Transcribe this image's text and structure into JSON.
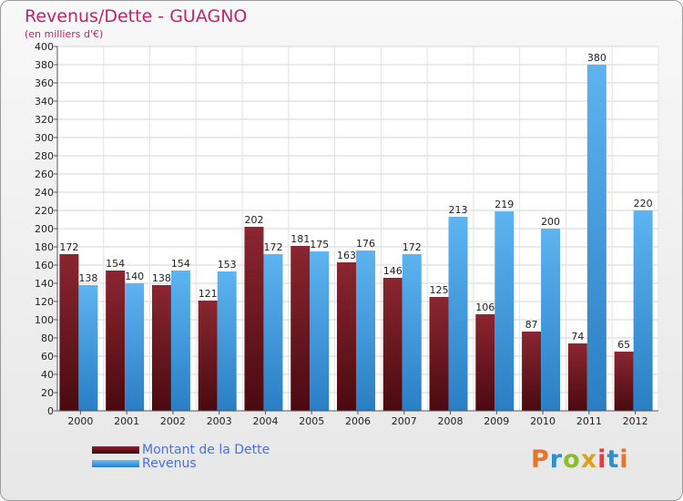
{
  "header": {
    "title": "Revenus/Dette - GUAGNO",
    "subtitle": "(en milliers d'€)"
  },
  "chart_data": {
    "type": "bar",
    "title": "Revenus/Dette - GUAGNO",
    "ylabel": "(en milliers d'€)",
    "categories": [
      "2000",
      "2001",
      "2002",
      "2003",
      "2004",
      "2005",
      "2006",
      "2007",
      "2008",
      "2009",
      "2010",
      "2011",
      "2012"
    ],
    "series": [
      {
        "name": "Montant de la Dette",
        "color": "#7a1a22",
        "values": [
          172,
          154,
          138,
          121,
          202,
          181,
          163,
          146,
          125,
          106,
          87,
          74,
          65
        ]
      },
      {
        "name": "Revenus",
        "color": "#4aa3e6",
        "values": [
          138,
          140,
          154,
          153,
          172,
          175,
          176,
          172,
          213,
          219,
          200,
          380,
          220
        ]
      }
    ],
    "ylim": [
      0,
      400
    ],
    "yticks": [
      0,
      20,
      40,
      60,
      80,
      100,
      120,
      140,
      160,
      180,
      200,
      220,
      240,
      260,
      280,
      300,
      320,
      340,
      360,
      380,
      400
    ],
    "grid": true,
    "legend_position": "bottom-left"
  },
  "legend": {
    "items": [
      {
        "label": "Montant de la Dette",
        "color": "#7a1a22"
      },
      {
        "label": "Revenus",
        "color": "#4aa3e6"
      }
    ]
  },
  "logo": {
    "text": "Proxiti",
    "colors": [
      "#e8732a",
      "#2b8fd0",
      "#8bbf2a",
      "#d9a21f",
      "#e33d3d",
      "#2b8fd0",
      "#e8732a"
    ]
  }
}
